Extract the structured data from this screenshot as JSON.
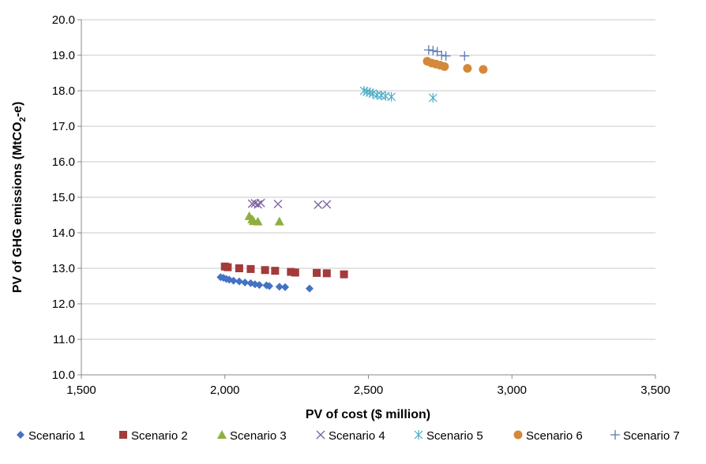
{
  "chart_data": {
    "type": "scatter",
    "title": "",
    "xlabel": "PV of cost ($ million)",
    "ylabel_prefix": "PV of GHG emissions (MtCO",
    "ylabel_sub": "2",
    "ylabel_suffix": "-e)",
    "xlim": [
      1500,
      3500
    ],
    "ylim": [
      10.0,
      20.0
    ],
    "xticks": [
      1500,
      2000,
      2500,
      3000,
      3500
    ],
    "xtick_labels": [
      "1,500",
      "2,000",
      "2,500",
      "3,000",
      "3,500"
    ],
    "yticks": [
      10,
      11,
      12,
      13,
      14,
      15,
      16,
      17,
      18,
      19,
      20
    ],
    "ytick_labels": [
      "10.0",
      "11.0",
      "12.0",
      "13.0",
      "14.0",
      "15.0",
      "16.0",
      "17.0",
      "18.0",
      "19.0",
      "20.0"
    ],
    "grid": "horizontal",
    "legend_position": "bottom",
    "series": [
      {
        "name": "Scenario 1",
        "marker": "diamond",
        "color": "#4472C4",
        "points": [
          [
            1985,
            12.75
          ],
          [
            1995,
            12.73
          ],
          [
            2005,
            12.7
          ],
          [
            2015,
            12.68
          ],
          [
            2030,
            12.65
          ],
          [
            2050,
            12.63
          ],
          [
            2070,
            12.6
          ],
          [
            2090,
            12.58
          ],
          [
            2105,
            12.55
          ],
          [
            2120,
            12.53
          ],
          [
            2145,
            12.52
          ],
          [
            2155,
            12.5
          ],
          [
            2190,
            12.48
          ],
          [
            2210,
            12.47
          ],
          [
            2295,
            12.43
          ]
        ]
      },
      {
        "name": "Scenario 2",
        "marker": "square",
        "color": "#A33B3B",
        "points": [
          [
            2000,
            13.05
          ],
          [
            2010,
            13.03
          ],
          [
            2050,
            13.0
          ],
          [
            2090,
            12.98
          ],
          [
            2140,
            12.95
          ],
          [
            2175,
            12.93
          ],
          [
            2230,
            12.9
          ],
          [
            2245,
            12.88
          ],
          [
            2320,
            12.87
          ],
          [
            2355,
            12.86
          ],
          [
            2415,
            12.83
          ]
        ]
      },
      {
        "name": "Scenario 3",
        "marker": "triangle",
        "color": "#8FAF3F",
        "points": [
          [
            2085,
            14.47
          ],
          [
            2095,
            14.38
          ],
          [
            2100,
            14.33
          ],
          [
            2115,
            14.32
          ],
          [
            2190,
            14.32
          ]
        ]
      },
      {
        "name": "Scenario 4",
        "marker": "x",
        "color": "#7E65A0",
        "points": [
          [
            2095,
            14.82
          ],
          [
            2105,
            14.83
          ],
          [
            2115,
            14.8
          ],
          [
            2125,
            14.84
          ],
          [
            2185,
            14.81
          ],
          [
            2325,
            14.79
          ],
          [
            2355,
            14.8
          ]
        ]
      },
      {
        "name": "Scenario 5",
        "marker": "asterisk",
        "color": "#4BACC6",
        "points": [
          [
            2485,
            18.0
          ],
          [
            2495,
            17.97
          ],
          [
            2505,
            17.95
          ],
          [
            2515,
            17.92
          ],
          [
            2530,
            17.88
          ],
          [
            2545,
            17.87
          ],
          [
            2560,
            17.85
          ],
          [
            2580,
            17.83
          ],
          [
            2725,
            17.8
          ]
        ]
      },
      {
        "name": "Scenario 6",
        "marker": "circle",
        "color": "#D4883A",
        "points": [
          [
            2705,
            18.83
          ],
          [
            2720,
            18.78
          ],
          [
            2735,
            18.75
          ],
          [
            2750,
            18.72
          ],
          [
            2765,
            18.68
          ],
          [
            2845,
            18.63
          ],
          [
            2900,
            18.6
          ]
        ]
      },
      {
        "name": "Scenario 7",
        "marker": "plus",
        "color": "#5B7BB4",
        "points": [
          [
            2710,
            19.15
          ],
          [
            2725,
            19.13
          ],
          [
            2740,
            19.1
          ],
          [
            2755,
            19.0
          ],
          [
            2770,
            18.98
          ],
          [
            2835,
            18.98
          ]
        ]
      }
    ]
  }
}
